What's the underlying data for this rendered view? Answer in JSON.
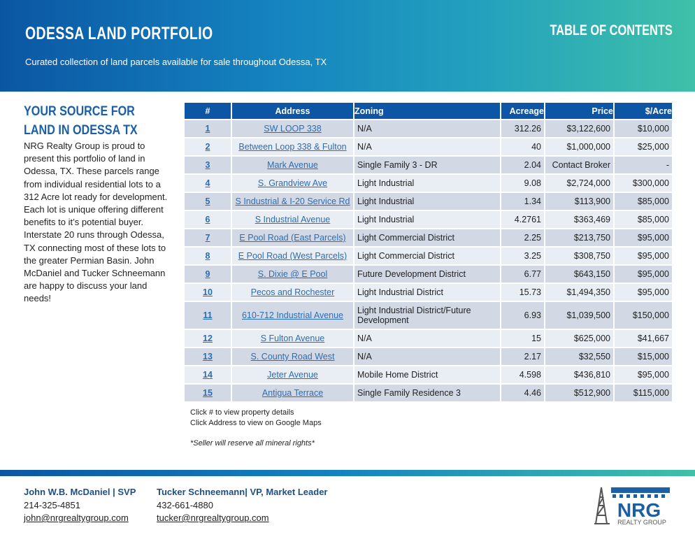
{
  "header": {
    "title": "ODESSA LAND PORTFOLIO",
    "subtitle": "Curated collection of land parcels available for sale throughout Odessa, TX",
    "toc": "TABLE OF CONTENTS"
  },
  "sidebar": {
    "heading": "YOUR SOURCE FOR LAND IN ODESSA TX",
    "body": "NRG Realty Group is proud to present this portfolio of land in Odessa, TX. These parcels range from individual residential lots to a 312 Acre lot ready for development. Each lot is unique offering different benefits to it’s potential buyer. Interstate 20 runs through Odessa, TX connecting most of these lots to the greater Permian Basin. John McDaniel and Tucker Schneemann are happy to discuss your land needs!"
  },
  "table": {
    "headers": [
      "#",
      "Address",
      "Zoning",
      "Acreage",
      "Price",
      "$/Acre"
    ],
    "rows": [
      [
        "1",
        "SW LOOP 338",
        "N/A",
        "312.26",
        "$3,122,600",
        "$10,000"
      ],
      [
        "2",
        "Between Loop 338 & Fulton",
        "N/A",
        "40",
        "$1,000,000",
        "$25,000"
      ],
      [
        "3",
        "Mark Avenue",
        "Single Family 3 - DR",
        "2.04",
        "Contact Broker",
        "-"
      ],
      [
        "4",
        "S. Grandview Ave",
        "Light Industrial",
        "9.08",
        "$2,724,000",
        "$300,000"
      ],
      [
        "5",
        "S Industrial & I-20 Service Rd",
        "Light Industrial",
        "1.34",
        "$113,900",
        "$85,000"
      ],
      [
        "6",
        "S Industrial Avenue",
        "Light Industrial",
        "4.2761",
        "$363,469",
        "$85,000"
      ],
      [
        "7",
        "E Pool Road (East Parcels)",
        "Light Commercial District",
        "2.25",
        "$213,750",
        "$95,000"
      ],
      [
        "8",
        "E Pool Road (West Parcels)",
        "Light Commercial District",
        "3.25",
        "$308,750",
        "$95,000"
      ],
      [
        "9",
        "S. Dixie @ E Pool",
        "Future Development District",
        "6.77",
        "$643,150",
        "$95,000"
      ],
      [
        "10",
        "Pecos and Rochester",
        "Light Industrial District",
        "15.73",
        "$1,494,350",
        "$95,000"
      ],
      [
        "11",
        "610-712 Industrial Avenue",
        "Light Industrial District/Future Development",
        "6.93",
        "$1,039,500",
        "$150,000"
      ],
      [
        "12",
        "S Fulton Avenue",
        "N/A",
        "15",
        "$625,000",
        "$41,667"
      ],
      [
        "13",
        "S. County Road West",
        "N/A",
        "2.17",
        "$32,550",
        "$15,000"
      ],
      [
        "14",
        "Jeter Avenue",
        "Mobile Home District",
        "4.598",
        "$436,810",
        "$95,000"
      ],
      [
        "15",
        "Antigua Terrace",
        "Single Family Residence 3",
        "4.46",
        "$512,900",
        "$115,000"
      ]
    ]
  },
  "notes": {
    "line1": "Click # to view property details",
    "line2": "Click Address to view on Google Maps",
    "mineral": "*Seller will reserve all mineral rights*"
  },
  "contacts": [
    {
      "name": "John W.B. McDaniel | SVP",
      "phone": "214-325-4851",
      "email": "john@nrgrealtygroup.com"
    },
    {
      "name": "Tucker Schneemann| VP, Market Leader",
      "phone": "432-661-4880",
      "email": "tucker@nrgrealtygroup.com"
    }
  ],
  "logo": {
    "text": "NRG",
    "sub": "REALTY GROUP"
  },
  "colors": {
    "header_start": "#0b56a3",
    "header_end": "#3fc0a8",
    "table_header": "#0d56a5",
    "link": "#2a6db5"
  }
}
